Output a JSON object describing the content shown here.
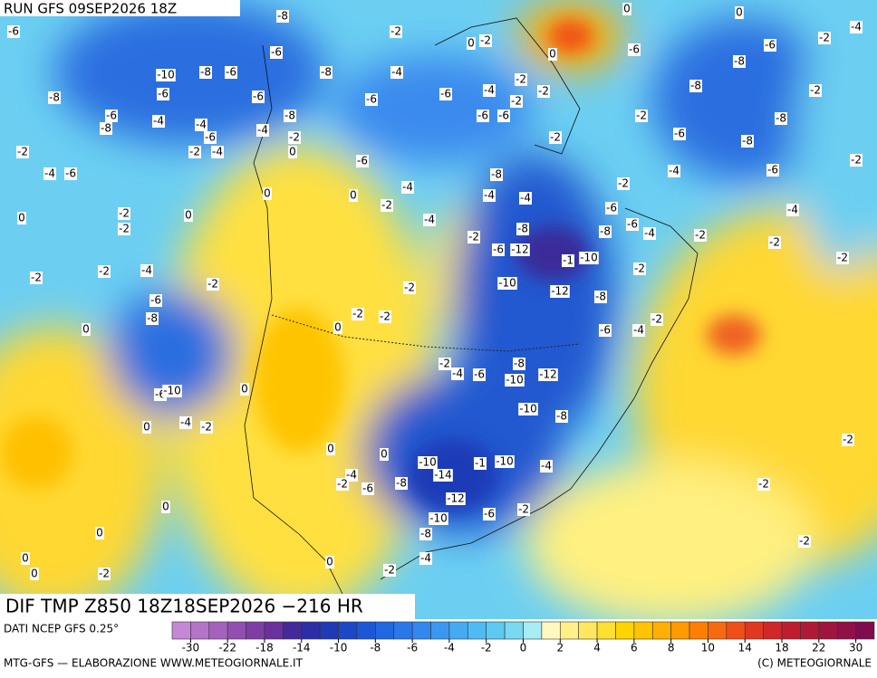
{
  "header": {
    "run": "RUN GFS 09SEP2026 18Z"
  },
  "map": {
    "labels": [
      -6,
      -8,
      -2,
      0,
      -2,
      0,
      0,
      -4,
      -2,
      0,
      -6,
      -6,
      -8,
      -6,
      -10,
      -8,
      -6,
      -8,
      -4,
      -2,
      -8,
      -2,
      -8,
      -6,
      -6,
      -6,
      -6,
      -4,
      -2,
      -2,
      -6,
      -8,
      -4,
      -4,
      -8,
      -6,
      -6,
      -2,
      -8,
      -6,
      -4,
      -2,
      -2,
      -6,
      -8,
      -2,
      -2,
      -4,
      0,
      -6,
      -2,
      -4,
      -6,
      -8,
      -4,
      -6,
      0,
      0,
      -4,
      -4,
      -4,
      -2,
      0,
      -2,
      -2,
      -2,
      0,
      -4,
      -6,
      -6,
      -4,
      -4,
      -8,
      -8,
      -2,
      -6,
      -12,
      -10,
      -1,
      -2,
      -2,
      -2,
      -2,
      -2,
      -4,
      -2,
      -2,
      -10,
      -12,
      -2,
      -8,
      -6,
      -8,
      0,
      0,
      -2,
      -2,
      -6,
      -4,
      -2,
      -2,
      -4,
      -6,
      -8,
      -10,
      -12,
      -6,
      -10,
      0,
      -10,
      -8,
      0,
      -4,
      -2,
      0,
      0,
      -2,
      -10,
      -1,
      -10,
      -4,
      -4,
      -2,
      -6,
      -8,
      -14,
      -12,
      -2,
      0,
      -6,
      -2,
      -10,
      -8,
      0,
      0,
      -4,
      -2,
      0,
      -2,
      0,
      -2
    ]
  },
  "colorbar": {
    "colors": [
      "#c488d4",
      "#b474c8",
      "#a462bc",
      "#924fb0",
      "#7e3ea6",
      "#6a309c",
      "#432a98",
      "#2c2ea6",
      "#1f3ab6",
      "#1a48c6",
      "#1c58d6",
      "#1f68e2",
      "#2878ea",
      "#3188f0",
      "#3a98f2",
      "#44aaf2",
      "#4ebcf2",
      "#5ccaf2",
      "#7ad8f2",
      "#a8ecf6",
      "#fff8c0",
      "#fff08a",
      "#ffe860",
      "#ffe030",
      "#ffd400",
      "#ffc400",
      "#ffb000",
      "#ff9a00",
      "#ff8000",
      "#f86a10",
      "#f05018",
      "#e03820",
      "#d02828",
      "#c01c30",
      "#b01838",
      "#a01440",
      "#901048",
      "#800c50"
    ],
    "ticks": [
      -30,
      -22,
      -18,
      -14,
      -10,
      -8,
      -6,
      -4,
      -2,
      0,
      2,
      4,
      6,
      8,
      10,
      14,
      18,
      22,
      30
    ]
  },
  "footer": {
    "product": "DIF TMP Z850 18Z18SEP2026 −216 HR",
    "source": "DATI NCEP GFS 0.25°",
    "credit": "MTG-GFS — ELABORAZIONE WWW.METEOGIORNALE.IT",
    "copyright": "(C) METEOGIORNALE"
  }
}
